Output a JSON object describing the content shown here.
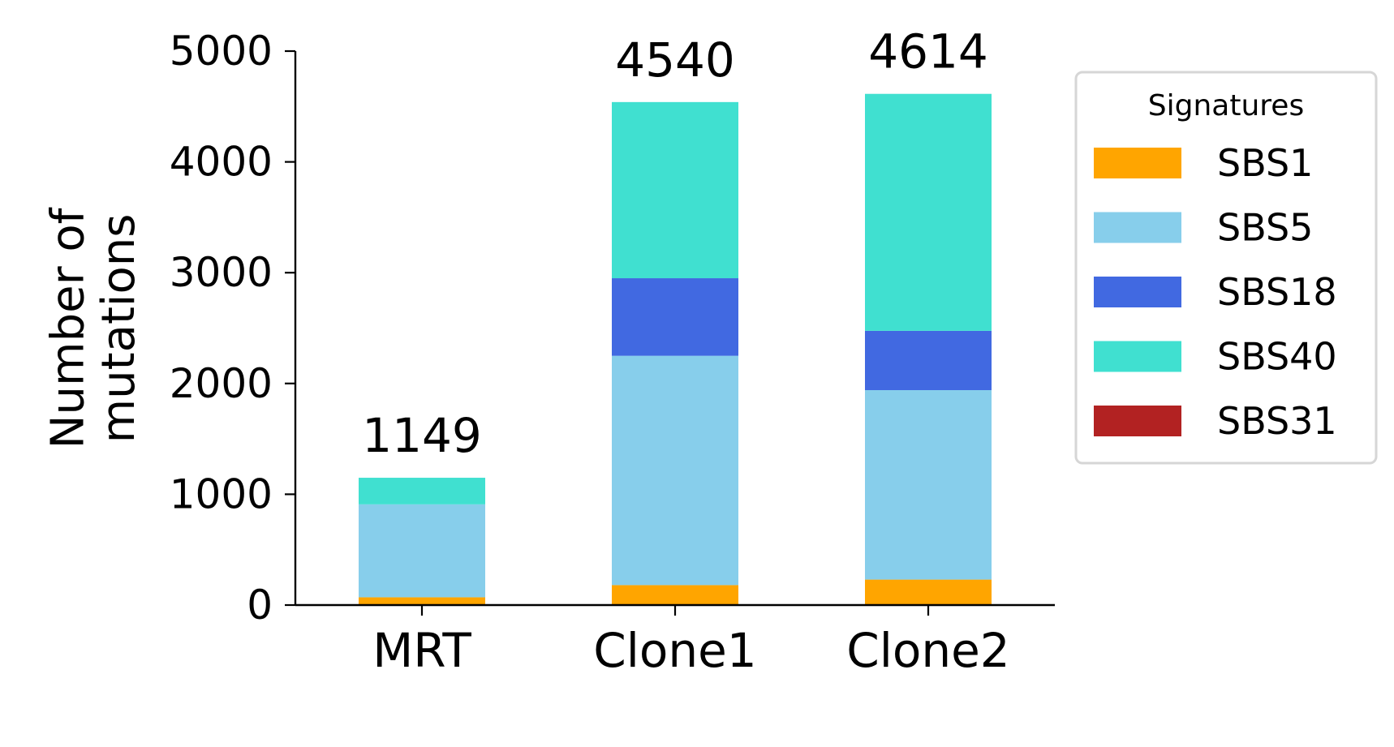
{
  "chart_data": {
    "type": "bar",
    "stacked": true,
    "title": "",
    "xlabel": "",
    "ylabel": "Number of mutations",
    "ylabel_lines": [
      "Number of",
      "mutations"
    ],
    "ylim": [
      0,
      5000
    ],
    "yticks": [
      0,
      1000,
      2000,
      3000,
      4000,
      5000
    ],
    "categories": [
      "MRT",
      "Clone1",
      "Clone2"
    ],
    "totals": [
      1149,
      4540,
      4614
    ],
    "grid": false,
    "legend": {
      "title": "Signatures",
      "position": "right"
    },
    "series": [
      {
        "name": "SBS1",
        "color": "#FFA500",
        "values": [
          70,
          180,
          230
        ]
      },
      {
        "name": "SBS5",
        "color": "#87CEEB",
        "values": [
          839,
          2070,
          1710
        ]
      },
      {
        "name": "SBS18",
        "color": "#4169E1",
        "values": [
          0,
          700,
          535
        ]
      },
      {
        "name": "SBS40",
        "color": "#40E0D0",
        "values": [
          240,
          1590,
          2139
        ]
      },
      {
        "name": "SBS31",
        "color": "#B22222",
        "values": [
          0,
          0,
          0
        ]
      }
    ]
  }
}
